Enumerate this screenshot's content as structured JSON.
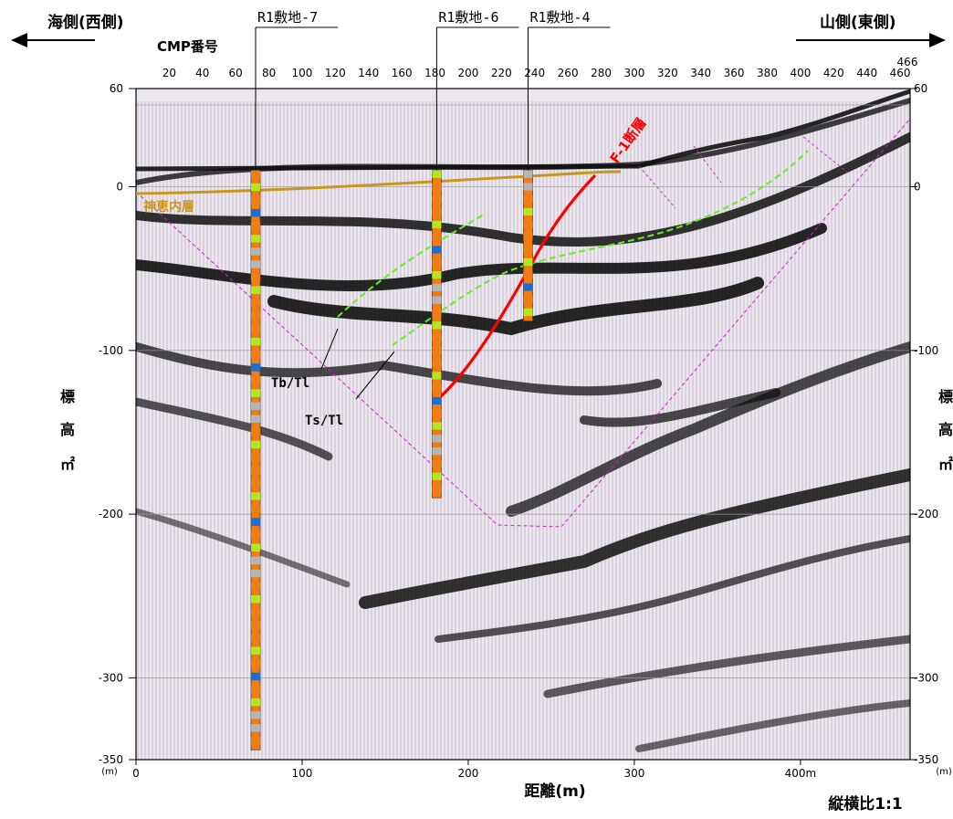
{
  "direction": {
    "west_label": "海側(西側)",
    "east_label": "山側(東側)"
  },
  "cmp_axis": {
    "title": "CMP番号",
    "ticks": [
      "20",
      "40",
      "60",
      "80",
      "100",
      "120",
      "140",
      "160",
      "180",
      "200",
      "220",
      "240",
      "260",
      "280",
      "300",
      "320",
      "340",
      "360",
      "380",
      "400",
      "420",
      "440",
      "460"
    ],
    "end_label": "466"
  },
  "elevation_axis": {
    "ticks": [
      "60",
      "0",
      "-100",
      "-200",
      "-300",
      "-350"
    ],
    "unit": "(m)",
    "title_chars": [
      "標",
      "高",
      "㎡"
    ]
  },
  "distance_axis": {
    "ticks": [
      "0",
      "100",
      "200",
      "300",
      "400m"
    ],
    "title": "距離(m)"
  },
  "ratio_note": "縦横比1:1",
  "boreholes": [
    {
      "label": "R1敷地-7",
      "cmp": 72,
      "bottom": -344
    },
    {
      "label": "R1敷地-6",
      "cmp": 181,
      "bottom": -190
    },
    {
      "label": "R1敷地-4",
      "cmp": 236,
      "bottom": -82
    }
  ],
  "annotations": {
    "fault": "F-1断層",
    "layer": "神恵内層",
    "tb": "Tb/Tl",
    "ts": "Ts/Tl"
  },
  "colors": {
    "fault": "#ff0000",
    "layer_line": "#c8961e",
    "boundary_green": "#66ee22",
    "frame_magenta": "#cc22cc",
    "core_orange": "#f07d14",
    "core_green": "#b4e61e",
    "core_gray": "#b4b4b4",
    "core_blue": "#1e6ed2"
  }
}
